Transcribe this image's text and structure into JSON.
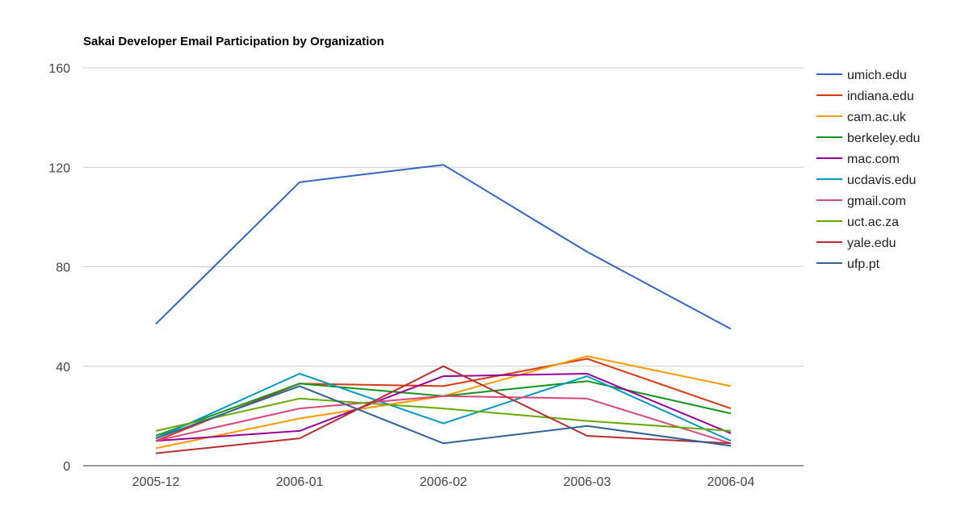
{
  "chart_data": {
    "type": "line",
    "title": "Sakai Developer Email Participation by Organization",
    "xlabel": "",
    "ylabel": "",
    "categories": [
      "2005-12",
      "2006-01",
      "2006-02",
      "2006-03",
      "2006-04"
    ],
    "ylim": [
      0,
      160
    ],
    "yticks": [
      0,
      40,
      80,
      120,
      160
    ],
    "grid": true,
    "legend_position": "right",
    "series": [
      {
        "name": "umich.edu",
        "color": "#3366cc",
        "values": [
          57,
          114,
          121,
          86,
          55
        ]
      },
      {
        "name": "indiana.edu",
        "color": "#dc3912",
        "values": [
          10,
          33,
          32,
          43,
          23
        ]
      },
      {
        "name": "cam.ac.uk",
        "color": "#ff9900",
        "values": [
          7,
          19,
          28,
          44,
          32
        ]
      },
      {
        "name": "berkeley.edu",
        "color": "#109618",
        "values": [
          12,
          33,
          28,
          34,
          21
        ]
      },
      {
        "name": "mac.com",
        "color": "#990099",
        "values": [
          10,
          14,
          36,
          37,
          13
        ]
      },
      {
        "name": "ucdavis.edu",
        "color": "#0099c6",
        "values": [
          11,
          37,
          17,
          36,
          10
        ]
      },
      {
        "name": "gmail.com",
        "color": "#dd4477",
        "values": [
          10,
          23,
          28,
          27,
          9
        ]
      },
      {
        "name": "uct.ac.za",
        "color": "#66aa00",
        "values": [
          14,
          27,
          23,
          18,
          14
        ]
      },
      {
        "name": "yale.edu",
        "color": "#b82e2e",
        "values": [
          5,
          11,
          40,
          12,
          9
        ]
      },
      {
        "name": "ufp.pt",
        "color": "#316395",
        "values": [
          11,
          32,
          9,
          16,
          8
        ]
      }
    ]
  }
}
